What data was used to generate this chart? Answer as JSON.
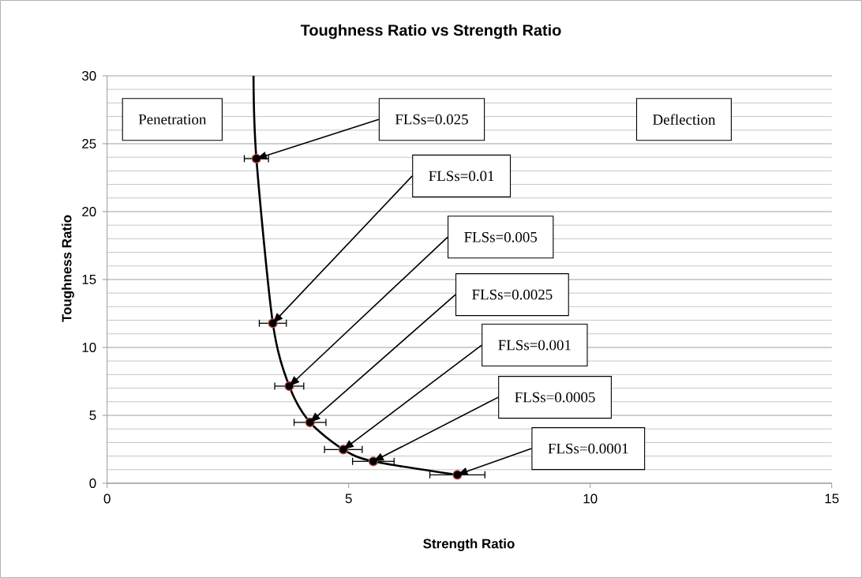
{
  "chart_data": {
    "type": "scatter",
    "title": "Toughness Ratio vs Strength Ratio",
    "xlabel": "Strength Ratio",
    "ylabel": "Toughness Ratio",
    "xlim": [
      0,
      15
    ],
    "xticks": [
      0,
      5,
      10,
      15
    ],
    "ylim": [
      0,
      30
    ],
    "yticks": [
      0,
      5,
      10,
      15,
      20,
      25,
      30
    ],
    "grid": "y",
    "series": [
      {
        "type": "line",
        "color": "#000000",
        "marker": "none",
        "x": [
          3.03,
          3.09,
          3.43,
          3.77,
          4.2,
          4.89,
          5.51,
          7.25
        ],
        "values": [
          30,
          23.9,
          11.78,
          7.15,
          4.48,
          2.48,
          1.61,
          0.62
        ]
      },
      {
        "type": "scatter",
        "color": "#000000",
        "marker": "circle",
        "x": [
          3.09,
          3.43,
          3.77,
          4.2,
          4.89,
          5.51,
          7.25
        ],
        "values": [
          23.9,
          11.78,
          7.15,
          4.48,
          2.48,
          1.61,
          0.62
        ],
        "xerrors": [
          0.25,
          0.28,
          0.3,
          0.33,
          0.39,
          0.43,
          0.57
        ]
      }
    ],
    "annotations": [
      "Penetration",
      "Deflection",
      {
        "text": "FLSs=0.025",
        "x": 3.09,
        "y": 23.9
      },
      {
        "text": "FLSs=0.01",
        "x": 3.43,
        "y": 11.78
      },
      {
        "text": "FLSs=0.005",
        "x": 3.77,
        "y": 7.15
      },
      {
        "text": "FLSs=0.0025",
        "x": 4.2,
        "y": 4.48
      },
      {
        "text": "FLSs=0.001",
        "x": 4.89,
        "y": 2.48
      },
      {
        "text": "FLSs=0.0005",
        "x": 5.51,
        "y": 1.61
      },
      {
        "text": "FLSs=0.0001",
        "x": 7.25,
        "y": 0.62
      }
    ]
  }
}
